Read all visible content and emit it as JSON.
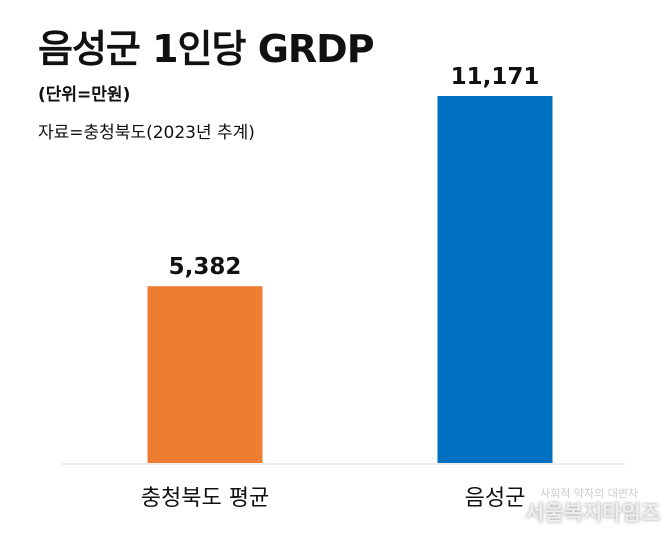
{
  "chart_data": {
    "type": "bar",
    "title": "음성군 1인당 GRDP",
    "unit_note": "(단위=만원)",
    "source_note": "자료=충청북도(2023년 추계)",
    "categories": [
      "충청북도 평균",
      "음성군"
    ],
    "values": [
      5382,
      11171
    ],
    "data_labels": [
      "5,382",
      "11,171"
    ],
    "colors": [
      "#ED7D31",
      "#0070C0"
    ],
    "xlabel": "",
    "ylabel": "",
    "ylim": [
      0,
      11171
    ],
    "grid": false,
    "legend": "none"
  },
  "watermark": {
    "line1": "사회적 약자의 대변자",
    "line2": "서울복지타임즈"
  }
}
